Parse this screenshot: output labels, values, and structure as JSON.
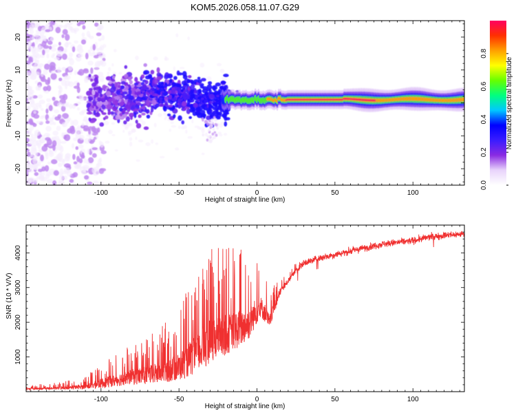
{
  "chart_data": [
    {
      "type": "heatmap",
      "title": "KOM5.2026.058.11.07.G29",
      "xlabel": "Height of straight line (km)",
      "ylabel": "Frequency (Hz)",
      "xlim": [
        -148,
        133
      ],
      "ylim": [
        -25,
        25
      ],
      "xticks": [
        -100,
        -50,
        0,
        50,
        100
      ],
      "yticks": [
        -20,
        -10,
        0,
        10,
        20
      ],
      "colorbar": {
        "label": "Normalized spectral amplitude",
        "range": [
          0,
          1
        ],
        "ticks": [
          "0.0",
          "0.2",
          "0.4",
          "0.6",
          "0.8"
        ],
        "colors": [
          "#ffffff",
          "#e8d4fb",
          "#8a2be2",
          "#3a1cff",
          "#0000ff",
          "#00c8ff",
          "#00ff80",
          "#66ff00",
          "#ffff00",
          "#ffa000",
          "#ff3000",
          "#ff0060"
        ]
      },
      "dominant_frequency_track": {
        "x": [
          -105,
          -80,
          -60,
          -45,
          -30,
          -20,
          -10,
          0,
          20,
          60,
          100,
          133
        ],
        "freq": [
          1,
          2,
          3,
          2,
          0,
          1,
          1,
          1,
          1,
          1,
          1,
          1
        ],
        "amplitude": [
          0.2,
          0.25,
          0.3,
          0.35,
          0.45,
          0.5,
          0.55,
          0.6,
          0.9,
          0.9,
          0.85,
          0.8
        ]
      }
    },
    {
      "type": "line",
      "title": "",
      "xlabel": "Height of straight line (km)",
      "ylabel": "SNR (10 * V/V)",
      "xlim": [
        -148,
        133
      ],
      "ylim": [
        0,
        4800
      ],
      "xticks": [
        -100,
        -50,
        0,
        50,
        100
      ],
      "yticks": [
        1000,
        2000,
        3000,
        4000
      ],
      "series": [
        {
          "name": "SNR",
          "color": "#f03030",
          "x": [
            -148,
            -130,
            -110,
            -100,
            -90,
            -80,
            -70,
            -60,
            -50,
            -40,
            -30,
            -20,
            -10,
            -5,
            0,
            2,
            5,
            8,
            10,
            15,
            20,
            25,
            30,
            40,
            50,
            60,
            70,
            80,
            90,
            100,
            110,
            120,
            133
          ],
          "y": [
            80,
            100,
            150,
            250,
            350,
            450,
            500,
            600,
            750,
            1100,
            1500,
            1700,
            1900,
            2000,
            2400,
            2500,
            2300,
            2000,
            2300,
            2900,
            3200,
            3500,
            3700,
            3850,
            3950,
            4050,
            4150,
            4250,
            4300,
            4350,
            4450,
            4500,
            4550
          ],
          "noise_amplitude": [
            60,
            80,
            150,
            300,
            400,
            500,
            600,
            700,
            900,
            1200,
            1400,
            1300,
            1200,
            1000,
            900,
            700,
            600,
            500,
            400,
            250,
            150,
            120,
            100,
            100,
            100,
            100,
            100,
            100,
            100,
            100,
            100,
            100,
            100
          ]
        }
      ]
    }
  ]
}
